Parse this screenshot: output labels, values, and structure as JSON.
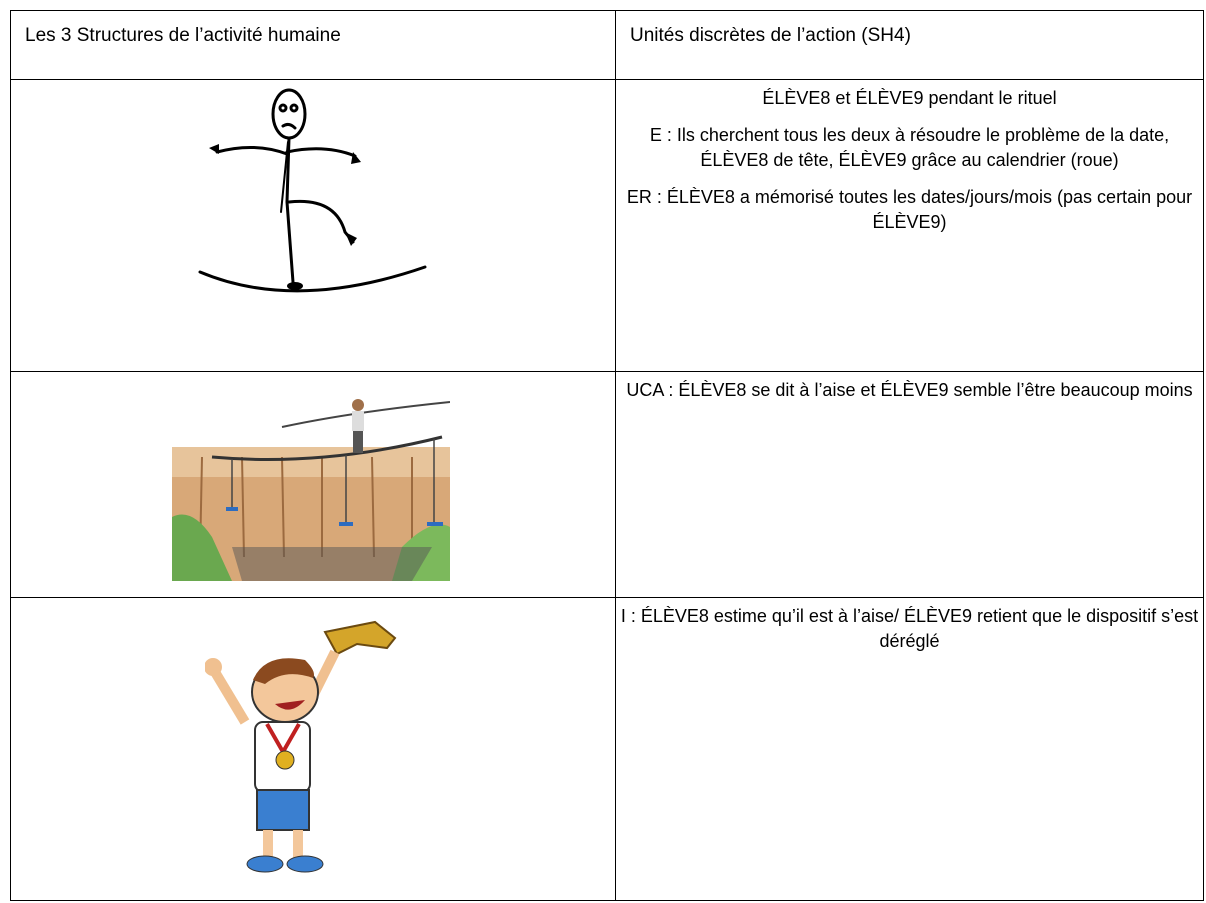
{
  "table": {
    "headers": [
      "Les 3 Structures de l’activité humaine",
      "Unités discrètes de l’action (SH4)"
    ],
    "rows": [
      {
        "paragraphs": [
          "ÉLÈVE8 et ÉLÈVE9 pendant le rituel",
          "E : Ils cherchent tous les deux à résoudre le problème de la date, ÉLÈVE8 de tête, ÉLÈVE9 grâce au calendrier (roue)",
          "ER : ÉLÈVE8 a mémorisé toutes les dates/jours/mois (pas certain pour ÉLÈVE9)"
        ]
      },
      {
        "paragraphs": [
          "UCA : ÉLÈVE8 se dit à l’aise et ÉLÈVE9 semble l’être beaucoup moins"
        ]
      },
      {
        "paragraphs": [
          "I : ÉLÈVE8 estime qu’il est à l’aise/ ÉLÈVE9 retient que le dispositif s’est déréglé"
        ]
      }
    ]
  }
}
